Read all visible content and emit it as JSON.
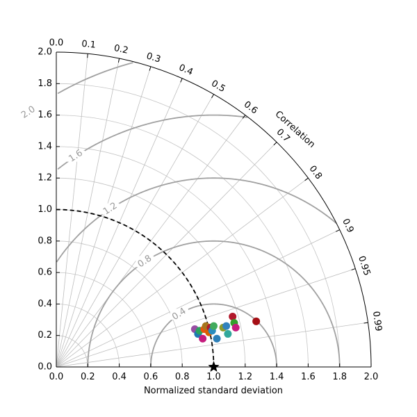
{
  "chart_data": {
    "type": "scatter",
    "subtype": "taylor-diagram",
    "xlabel": "Normalized standard deviation",
    "corr_title": "Correlation",
    "std_range": [
      0,
      2
    ],
    "std_ticks": [
      "0.0",
      "0.2",
      "0.4",
      "0.6",
      "0.8",
      "1.0",
      "1.2",
      "1.4",
      "1.6",
      "1.8",
      "2.0"
    ],
    "corr_ticks": [
      {
        "value": 0.0,
        "label": "0.0"
      },
      {
        "value": 0.1,
        "label": "0.1"
      },
      {
        "value": 0.2,
        "label": "0.2"
      },
      {
        "value": 0.3,
        "label": "0.3"
      },
      {
        "value": 0.4,
        "label": "0.4"
      },
      {
        "value": 0.5,
        "label": "0.5"
      },
      {
        "value": 0.6,
        "label": "0.6"
      },
      {
        "value": 0.7,
        "label": "0.7"
      },
      {
        "value": 0.8,
        "label": "0.8"
      },
      {
        "value": 0.9,
        "label": "0.9"
      },
      {
        "value": 0.95,
        "label": "0.95"
      },
      {
        "value": 0.99,
        "label": "0.99"
      }
    ],
    "rms_contours": [
      {
        "value": 0.4,
        "label": "0.4"
      },
      {
        "value": 0.8,
        "label": "0.8"
      },
      {
        "value": 1.2,
        "label": "1.2"
      },
      {
        "value": 1.6,
        "label": "1.6"
      },
      {
        "value": 2.0,
        "label": "2.0"
      }
    ],
    "std_arc_contours": [
      1.0,
      1.4,
      1.8
    ],
    "reference": {
      "std": 1.0,
      "corr": 1.0,
      "marker": "star"
    },
    "grid": true,
    "points": [
      {
        "x": 0.88,
        "y": 0.24,
        "color": "#984ea3"
      },
      {
        "x": 0.9,
        "y": 0.21,
        "color": "#1f78b4"
      },
      {
        "x": 0.91,
        "y": 0.23,
        "color": "#2ca25f"
      },
      {
        "x": 0.93,
        "y": 0.18,
        "color": "#c51b7d"
      },
      {
        "x": 0.94,
        "y": 0.24,
        "color": "#e6550d"
      },
      {
        "x": 0.95,
        "y": 0.26,
        "color": "#a6761d"
      },
      {
        "x": 0.97,
        "y": 0.22,
        "color": "#d95f02"
      },
      {
        "x": 0.98,
        "y": 0.25,
        "color": "#b2182b"
      },
      {
        "x": 0.99,
        "y": 0.23,
        "color": "#2b8cbe"
      },
      {
        "x": 1.0,
        "y": 0.26,
        "color": "#41ab5d"
      },
      {
        "x": 1.02,
        "y": 0.18,
        "color": "#2c7fb8"
      },
      {
        "x": 1.06,
        "y": 0.25,
        "color": "#8c9a2b"
      },
      {
        "x": 1.08,
        "y": 0.26,
        "color": "#3182bd"
      },
      {
        "x": 1.09,
        "y": 0.21,
        "color": "#31a89c"
      },
      {
        "x": 1.12,
        "y": 0.32,
        "color": "#b2182b"
      },
      {
        "x": 1.13,
        "y": 0.28,
        "color": "#33a02c"
      },
      {
        "x": 1.14,
        "y": 0.25,
        "color": "#c51b7d"
      },
      {
        "x": 1.27,
        "y": 0.29,
        "color": "#a50f15"
      }
    ]
  }
}
